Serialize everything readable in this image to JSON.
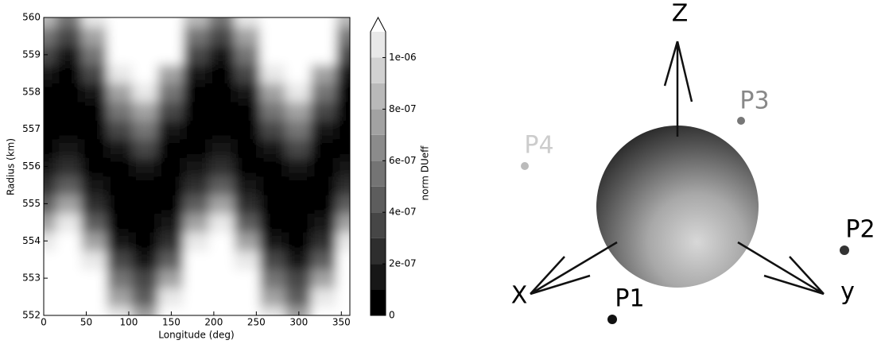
{
  "chart_data": {
    "type": "contour",
    "xlabel": "Longitude (deg)",
    "ylabel": "Radius (km)",
    "colorbar_label": "norm DUeff",
    "xlim": [
      0,
      360
    ],
    "ylim": [
      552,
      560
    ],
    "xticks": [
      0,
      50,
      100,
      150,
      200,
      250,
      300,
      350
    ],
    "yticks": [
      552,
      553,
      554,
      555,
      556,
      557,
      558,
      559,
      560
    ],
    "levels": [
      0,
      1e-07,
      2e-07,
      3e-07,
      4e-07,
      5e-07,
      6e-07,
      7e-07,
      8e-07,
      9e-07,
      1e-06,
      1.1e-06
    ],
    "colorbar_ticks": [
      0,
      {
        "value": 2e-07,
        "label": "2e-07"
      },
      {
        "value": 4e-07,
        "label": "4e-07"
      },
      {
        "value": 6e-07,
        "label": "6e-07"
      },
      {
        "value": 8e-07,
        "label": "8e-07"
      },
      {
        "value": 1e-06,
        "label": "1e-06"
      }
    ],
    "x": [
      0,
      30,
      60,
      90,
      120,
      150,
      180,
      210,
      240,
      270,
      300,
      330,
      360
    ],
    "y": [
      552,
      552.5,
      553,
      553.5,
      554,
      554.5,
      555,
      555.5,
      556,
      556.5,
      557,
      557.5,
      558,
      558.5,
      559,
      559.5,
      560
    ],
    "z": [
      [
        2.66e-06,
        3.23e-06,
        2.22e-06,
        1.05e-06,
        7.4e-07,
        1.36e-06,
        2.66e-06,
        3.23e-06,
        2.22e-06,
        1.05e-06,
        7.4e-07,
        1.36e-06,
        2.66e-06
      ],
      [
        2.17e-06,
        2.68e-06,
        1.77e-06,
        7.5e-07,
        4.9e-07,
        1.02e-06,
        2.17e-06,
        2.68e-06,
        1.77e-06,
        7.5e-07,
        4.9e-07,
        1.02e-06,
        2.17e-06
      ],
      [
        1.73e-06,
        2.19e-06,
        1.38e-06,
        5e-07,
        3e-07,
        7.2e-07,
        1.73e-06,
        2.19e-06,
        1.38e-06,
        5e-07,
        3e-07,
        7.2e-07,
        1.73e-06
      ],
      [
        1.34e-06,
        1.75e-06,
        1.03e-06,
        3e-07,
        1.5e-07,
        4.8e-07,
        1.34e-06,
        1.75e-06,
        1.03e-06,
        3e-07,
        1.5e-07,
        4.8e-07,
        1.34e-06
      ],
      [
        1e-06,
        1.35e-06,
        7.3e-07,
        1.5e-07,
        5.2e-08,
        2.9e-07,
        1e-06,
        1.35e-06,
        7.3e-07,
        1.5e-07,
        5.2e-08,
        2.9e-07,
        1e-06
      ],
      [
        7.1e-07,
        1.01e-06,
        4.9e-07,
        5.5e-08,
        5e-09,
        1.4e-07,
        7.1e-07,
        1.01e-06,
        4.9e-07,
        5.5e-08,
        5e-09,
        1.4e-07,
        7.1e-07
      ],
      [
        4.7e-07,
        7.2e-07,
        2.9e-07,
        6e-09,
        8e-09,
        4.8e-08,
        4.7e-07,
        7.2e-07,
        2.9e-07,
        6e-09,
        8e-09,
        4.8e-08,
        4.7e-07
      ],
      [
        2.8e-07,
        4.8e-07,
        1.5e-07,
        7e-09,
        6.1e-08,
        4e-09,
        2.8e-07,
        4.8e-07,
        1.5e-07,
        7e-09,
        6.1e-08,
        4e-09,
        2.8e-07
      ],
      [
        1.3e-07,
        2.8e-07,
        5e-08,
        5.8e-08,
        1.6e-07,
        1e-08,
        1.3e-07,
        2.8e-07,
        5e-08,
        5.8e-08,
        1.6e-07,
        1e-08,
        1.3e-07
      ],
      [
        4.4e-08,
        1.4e-07,
        4e-09,
        1.6e-07,
        3.2e-07,
        6.6e-08,
        4.4e-08,
        1.4e-07,
        4e-09,
        1.6e-07,
        3.2e-07,
        6.6e-08,
        4.4e-08
      ],
      [
        3e-09,
        4.6e-08,
        8e-09,
        3.1e-07,
        5.2e-07,
        1.7e-07,
        3e-09,
        4.6e-08,
        8e-09,
        3.1e-07,
        5.2e-07,
        1.7e-07,
        3e-09
      ],
      [
        1.2e-08,
        3e-09,
        6.2e-08,
        5.1e-07,
        7.7e-07,
        3.3e-07,
        1.2e-08,
        3e-09,
        6.2e-08,
        5.1e-07,
        7.7e-07,
        3.3e-07,
        1.2e-08
      ],
      [
        7.1e-08,
        1e-08,
        1.7e-07,
        7.6e-07,
        1.08e-06,
        5.3e-07,
        7.1e-08,
        1e-08,
        1.7e-07,
        7.6e-07,
        1.08e-06,
        5.3e-07,
        7.1e-08
      ],
      [
        1.8e-07,
        6.7e-08,
        3.2e-07,
        1.06e-06,
        1.43e-06,
        7.9e-07,
        1.8e-07,
        6.7e-08,
        3.2e-07,
        1.06e-06,
        1.43e-06,
        7.9e-07,
        1.8e-07
      ],
      [
        3.4e-07,
        1.7e-07,
        5.2e-07,
        1.41e-06,
        1.83e-06,
        1.1e-06,
        3.4e-07,
        1.7e-07,
        5.2e-07,
        1.41e-06,
        1.83e-06,
        1.1e-06,
        3.4e-07
      ],
      [
        5.5e-07,
        3.3e-07,
        7.8e-07,
        1.81e-06,
        2.28e-06,
        1.45e-06,
        5.5e-07,
        3.3e-07,
        7.8e-07,
        1.81e-06,
        2.28e-06,
        1.45e-06,
        5.5e-07
      ],
      [
        8.1e-07,
        5.4e-07,
        1.08e-06,
        2.27e-06,
        2.79e-06,
        1.86e-06,
        8.1e-07,
        5.4e-07,
        1.08e-06,
        2.27e-06,
        2.79e-06,
        1.86e-06,
        8.1e-07
      ]
    ]
  },
  "diagram": {
    "axes": {
      "z": "Z",
      "x": "X",
      "y": "y"
    },
    "points": [
      "P1",
      "P2",
      "P3",
      "P4"
    ]
  }
}
